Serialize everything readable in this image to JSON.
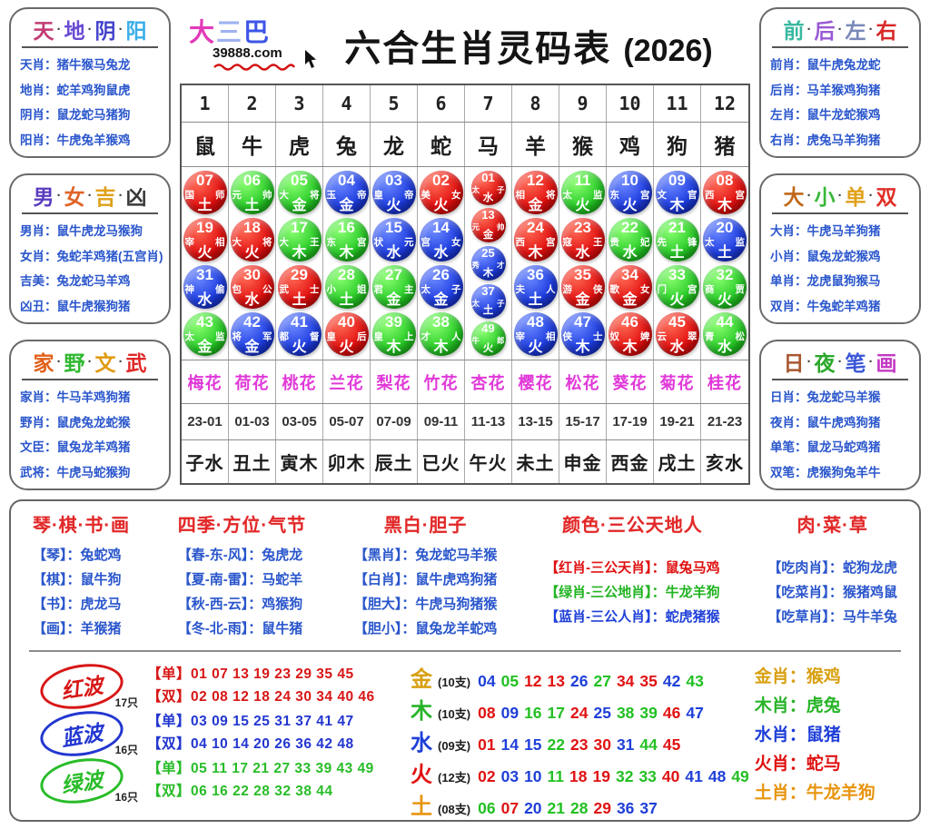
{
  "title": {
    "main": "六合生肖灵码表",
    "year": "(2026)"
  },
  "logo": {
    "chars": [
      {
        "t": "大",
        "c": "#e23ab8"
      },
      {
        "t": "三",
        "c": "#9fb2f2"
      },
      {
        "t": "巴",
        "c": "#3e55e6"
      }
    ],
    "site": "39888.com"
  },
  "side_boxes": [
    {
      "id": "tian-di-yin-yang",
      "title": [
        {
          "t": "天",
          "c": "#c23a72"
        },
        {
          "t": "地",
          "c": "#6a4ad2"
        },
        {
          "t": "阴",
          "c": "#4444cc"
        },
        {
          "t": "阳",
          "c": "#3aaee8"
        }
      ],
      "rows": [
        {
          "label": "天肖：",
          "value": "猪牛猴马兔龙"
        },
        {
          "label": "地肖：",
          "value": "蛇羊鸡狗鼠虎"
        },
        {
          "label": "阴肖：",
          "value": "鼠龙蛇马猪狗"
        },
        {
          "label": "阳肖：",
          "value": "牛虎兔羊猴鸡"
        }
      ]
    },
    {
      "id": "nan-nv-ji-xiong",
      "title": [
        {
          "t": "男",
          "c": "#5b3cc0"
        },
        {
          "t": "女",
          "c": "#e06428"
        },
        {
          "t": "吉",
          "c": "#e0a018"
        },
        {
          "t": "凶",
          "c": "#3a3a3a"
        }
      ],
      "rows": [
        {
          "label": "男肖：",
          "value": "鼠牛虎龙马猴狗"
        },
        {
          "label": "女肖：",
          "value": "兔蛇羊鸡猪(五宫肖)"
        },
        {
          "label": "吉美：",
          "value": "兔龙蛇马羊鸡"
        },
        {
          "label": "凶丑：",
          "value": "鼠牛虎猴狗猪"
        }
      ]
    },
    {
      "id": "jia-ye-wen-wu",
      "title": [
        {
          "t": "家",
          "c": "#e2601a"
        },
        {
          "t": "野",
          "c": "#30b830"
        },
        {
          "t": "文",
          "c": "#e09a10"
        },
        {
          "t": "武",
          "c": "#e02828"
        }
      ],
      "rows": [
        {
          "label": "家肖：",
          "value": "牛马羊鸡狗猪"
        },
        {
          "label": "野肖：",
          "value": "鼠虎兔龙蛇猴"
        },
        {
          "label": "文臣：",
          "value": "鼠兔龙羊鸡猪"
        },
        {
          "label": "武将：",
          "value": "牛虎马蛇猴狗"
        }
      ]
    },
    {
      "id": "qian-hou-zuo-you",
      "title": [
        {
          "t": "前",
          "c": "#38b8a0"
        },
        {
          "t": "后",
          "c": "#9a5ad4"
        },
        {
          "t": "左",
          "c": "#7888b8"
        },
        {
          "t": "右",
          "c": "#d82828"
        }
      ],
      "rows": [
        {
          "label": "前肖：",
          "value": "鼠牛虎兔龙蛇"
        },
        {
          "label": "后肖：",
          "value": "马羊猴鸡狗猪"
        },
        {
          "label": "左肖：",
          "value": "鼠牛龙蛇猴鸡"
        },
        {
          "label": "右肖：",
          "value": "虎兔马羊狗猪"
        }
      ]
    },
    {
      "id": "da-xiao-dan-shuang",
      "title": [
        {
          "t": "大",
          "c": "#c06818"
        },
        {
          "t": "小",
          "c": "#38b838"
        },
        {
          "t": "单",
          "c": "#e0a018"
        },
        {
          "t": "双",
          "c": "#e03028"
        }
      ],
      "rows": [
        {
          "label": "大肖：",
          "value": "牛虎马羊狗猪"
        },
        {
          "label": "小肖：",
          "value": "鼠兔龙蛇猴鸡"
        },
        {
          "label": "单肖：",
          "value": "龙虎鼠狗猴马"
        },
        {
          "label": "双肖：",
          "value": "牛兔蛇羊鸡猪"
        }
      ]
    },
    {
      "id": "ri-ye-bi-hua",
      "title": [
        {
          "t": "日",
          "c": "#a85830"
        },
        {
          "t": "夜",
          "c": "#2ba82b"
        },
        {
          "t": "笔",
          "c": "#3a56d8"
        },
        {
          "t": "画",
          "c": "#c438c4"
        }
      ],
      "rows": [
        {
          "label": "日肖：",
          "value": "兔龙蛇马羊猴"
        },
        {
          "label": "夜肖：",
          "value": "鼠牛虎鸡狗猪"
        },
        {
          "label": "单笔：",
          "value": "鼠龙马蛇鸡猪"
        },
        {
          "label": "双笔：",
          "value": "虎猴狗兔羊牛"
        }
      ]
    }
  ],
  "table": {
    "columns": [
      {
        "num": "1",
        "animal": "鼠",
        "flower": "梅花",
        "time": "23-01",
        "hour": "子水",
        "balls": [
          {
            "n": "07",
            "c": "r",
            "name": "国师",
            "elem": "土"
          },
          {
            "n": "19",
            "c": "r",
            "name": "宰相",
            "elem": "火"
          },
          {
            "n": "31",
            "c": "b",
            "name": "神偷",
            "elem": "水"
          },
          {
            "n": "43",
            "c": "g",
            "name": "太监",
            "elem": "金"
          }
        ]
      },
      {
        "num": "2",
        "animal": "牛",
        "flower": "荷花",
        "time": "01-03",
        "hour": "丑土",
        "balls": [
          {
            "n": "06",
            "c": "g",
            "name": "元帅",
            "elem": "土"
          },
          {
            "n": "18",
            "c": "r",
            "name": "大将",
            "elem": "火"
          },
          {
            "n": "30",
            "c": "r",
            "name": "包公",
            "elem": "水"
          },
          {
            "n": "42",
            "c": "b",
            "name": "将军",
            "elem": "金"
          }
        ]
      },
      {
        "num": "3",
        "animal": "虎",
        "flower": "桃花",
        "time": "03-05",
        "hour": "寅木",
        "balls": [
          {
            "n": "05",
            "c": "g",
            "name": "大将",
            "elem": "金"
          },
          {
            "n": "17",
            "c": "g",
            "name": "大王",
            "elem": "木"
          },
          {
            "n": "29",
            "c": "r",
            "name": "武士",
            "elem": "土"
          },
          {
            "n": "41",
            "c": "b",
            "name": "都督",
            "elem": "火"
          }
        ]
      },
      {
        "num": "4",
        "animal": "兔",
        "flower": "兰花",
        "time": "05-07",
        "hour": "卯木",
        "balls": [
          {
            "n": "04",
            "c": "b",
            "name": "玉帝",
            "elem": "金"
          },
          {
            "n": "16",
            "c": "g",
            "name": "东宫",
            "elem": "木"
          },
          {
            "n": "28",
            "c": "g",
            "name": "小姐",
            "elem": "土"
          },
          {
            "n": "40",
            "c": "r",
            "name": "皇后",
            "elem": "火"
          }
        ]
      },
      {
        "num": "5",
        "animal": "龙",
        "flower": "梨花",
        "time": "07-09",
        "hour": "辰土",
        "balls": [
          {
            "n": "03",
            "c": "b",
            "name": "皇帝",
            "elem": "火"
          },
          {
            "n": "15",
            "c": "b",
            "name": "状元",
            "elem": "水"
          },
          {
            "n": "27",
            "c": "g",
            "name": "君主",
            "elem": "金"
          },
          {
            "n": "39",
            "c": "g",
            "name": "皇上",
            "elem": "木"
          }
        ]
      },
      {
        "num": "6",
        "animal": "蛇",
        "flower": "竹花",
        "time": "09-11",
        "hour": "已火",
        "balls": [
          {
            "n": "02",
            "c": "r",
            "name": "美女",
            "elem": "火"
          },
          {
            "n": "14",
            "c": "b",
            "name": "宫女",
            "elem": "水"
          },
          {
            "n": "26",
            "c": "b",
            "name": "太子",
            "elem": "金"
          },
          {
            "n": "38",
            "c": "g",
            "name": "才人",
            "elem": "木"
          }
        ]
      },
      {
        "num": "7",
        "animal": "马",
        "flower": "杏花",
        "time": "11-13",
        "hour": "午火",
        "small": true,
        "balls": [
          {
            "n": "01",
            "c": "r",
            "name": "太子",
            "elem": "水"
          },
          {
            "n": "13",
            "c": "r",
            "name": "元帅",
            "elem": "金"
          },
          {
            "n": "25",
            "c": "b",
            "name": "秀才",
            "elem": "木"
          },
          {
            "n": "37",
            "c": "b",
            "name": "太子",
            "elem": "土"
          },
          {
            "n": "49",
            "c": "g",
            "name": "牛郎",
            "elem": "火"
          }
        ]
      },
      {
        "num": "8",
        "animal": "羊",
        "flower": "樱花",
        "time": "13-15",
        "hour": "未土",
        "balls": [
          {
            "n": "12",
            "c": "r",
            "name": "相将",
            "elem": "金"
          },
          {
            "n": "24",
            "c": "r",
            "name": "西宫",
            "elem": "木"
          },
          {
            "n": "36",
            "c": "b",
            "name": "夫人",
            "elem": "土"
          },
          {
            "n": "48",
            "c": "b",
            "name": "宰相",
            "elem": "火"
          }
        ]
      },
      {
        "num": "9",
        "animal": "猴",
        "flower": "松花",
        "time": "15-17",
        "hour": "申金",
        "balls": [
          {
            "n": "11",
            "c": "g",
            "name": "太监",
            "elem": "火"
          },
          {
            "n": "23",
            "c": "r",
            "name": "寇王",
            "elem": "水"
          },
          {
            "n": "35",
            "c": "r",
            "name": "游侠",
            "elem": "金"
          },
          {
            "n": "47",
            "c": "b",
            "name": "侠士",
            "elem": "木"
          }
        ]
      },
      {
        "num": "10",
        "animal": "鸡",
        "flower": "葵花",
        "time": "17-19",
        "hour": "西金",
        "balls": [
          {
            "n": "10",
            "c": "b",
            "name": "东宫",
            "elem": "火"
          },
          {
            "n": "22",
            "c": "g",
            "name": "贵妃",
            "elem": "水"
          },
          {
            "n": "34",
            "c": "r",
            "name": "歌女",
            "elem": "金"
          },
          {
            "n": "46",
            "c": "r",
            "name": "奴婢",
            "elem": "木"
          }
        ]
      },
      {
        "num": "11",
        "animal": "狗",
        "flower": "菊花",
        "time": "19-21",
        "hour": "戌土",
        "balls": [
          {
            "n": "09",
            "c": "b",
            "name": "文官",
            "elem": "木"
          },
          {
            "n": "21",
            "c": "g",
            "name": "先锋",
            "elem": "土"
          },
          {
            "n": "33",
            "c": "g",
            "name": "门宫",
            "elem": "火"
          },
          {
            "n": "45",
            "c": "r",
            "name": "云翠",
            "elem": "水"
          }
        ]
      },
      {
        "num": "12",
        "animal": "猪",
        "flower": "桂花",
        "time": "21-23",
        "hour": "亥水",
        "balls": [
          {
            "n": "08",
            "c": "r",
            "name": "西宫",
            "elem": "木"
          },
          {
            "n": "20",
            "c": "b",
            "name": "太监",
            "elem": "土"
          },
          {
            "n": "32",
            "c": "g",
            "name": "商贾",
            "elem": "火"
          },
          {
            "n": "44",
            "c": "g",
            "name": "青松",
            "elem": "水"
          }
        ]
      }
    ]
  },
  "bottom": {
    "categories": [
      {
        "title": "琴·棋·书·画",
        "rows": [
          {
            "label": "【琴】：",
            "value": "兔蛇鸡"
          },
          {
            "label": "【棋】：",
            "value": "鼠牛狗"
          },
          {
            "label": "【书】：",
            "value": "虎龙马"
          },
          {
            "label": "【画】：",
            "value": "羊猴猪"
          }
        ]
      },
      {
        "title": "四季·方位·气节",
        "rows": [
          {
            "label": "【春-东-风】：",
            "value": "兔虎龙"
          },
          {
            "label": "【夏-南-雷】：",
            "value": "马蛇羊"
          },
          {
            "label": "【秋-西-云】：",
            "value": "鸡猴狗"
          },
          {
            "label": "【冬-北-雨】：",
            "value": "鼠牛猪"
          }
        ]
      },
      {
        "title": "黑白·胆子",
        "rows": [
          {
            "label": "【黑肖】：",
            "value": "兔龙蛇马羊猴"
          },
          {
            "label": "【白肖】：",
            "value": "鼠牛虎鸡狗猪"
          },
          {
            "label": "【胆大】：",
            "value": "牛虎马狗猪猴"
          },
          {
            "label": "【胆小】：",
            "value": "鼠兔龙羊蛇鸡"
          }
        ]
      },
      {
        "title": "颜色·三公天地人",
        "offset": true,
        "rows": [
          {
            "label": "【红肖-三公天肖】：",
            "value": "鼠兔马鸡",
            "color": "#e01212"
          },
          {
            "label": "【绿肖-三公地肖】：",
            "value": "牛龙羊狗",
            "color": "#22b422"
          },
          {
            "label": "【蓝肖-三公人肖】：",
            "value": "蛇虎猪猴",
            "color": "#1e3fd8"
          }
        ]
      },
      {
        "title": "肉·菜·草",
        "offset": true,
        "rows": [
          {
            "label": "【吃肉肖】：",
            "value": "蛇狗龙虎"
          },
          {
            "label": "【吃菜肖】：",
            "value": "猴猪鸡鼠"
          },
          {
            "label": "【吃草肖】：",
            "value": "马牛羊兔"
          }
        ]
      }
    ],
    "waves": [
      {
        "name": "红波",
        "count": "17只",
        "color": "#d81616",
        "odd_label": "【单】",
        "odd": "01 07 13 19 23 29 35 45",
        "even_label": "【双】",
        "even": "02 08 12 18 24 30 34 40 46"
      },
      {
        "name": "蓝波",
        "count": "16只",
        "color": "#2236d0",
        "odd_label": "【单】",
        "odd": "03 09 15 25 31 37 41 47",
        "even_label": "【双】",
        "even": "04 10 14 20 26 36 42 48"
      },
      {
        "name": "绿波",
        "count": "16只",
        "color": "#28bc28",
        "odd_label": "【单】",
        "odd": "05 11 17 21 27 33 39 43 49",
        "even_label": "【双】",
        "even": "06 16 22 28 32 38 44"
      }
    ],
    "elements": [
      {
        "name": "金",
        "color": "#d8a012",
        "count": "(10支)",
        "nums": [
          [
            "04",
            "b"
          ],
          [
            "05",
            "g"
          ],
          [
            "12",
            "r"
          ],
          [
            "13",
            "r"
          ],
          [
            "26",
            "b"
          ],
          [
            "27",
            "g"
          ],
          [
            "34",
            "r"
          ],
          [
            "35",
            "r"
          ],
          [
            "42",
            "b"
          ],
          [
            "43",
            "g"
          ]
        ]
      },
      {
        "name": "木",
        "color": "#28b428",
        "count": "(10支)",
        "nums": [
          [
            "08",
            "r"
          ],
          [
            "09",
            "b"
          ],
          [
            "16",
            "g"
          ],
          [
            "17",
            "g"
          ],
          [
            "24",
            "r"
          ],
          [
            "25",
            "b"
          ],
          [
            "38",
            "g"
          ],
          [
            "39",
            "g"
          ],
          [
            "46",
            "r"
          ],
          [
            "47",
            "b"
          ]
        ]
      },
      {
        "name": "水",
        "color": "#1e3fd8",
        "count": "(09支)",
        "nums": [
          [
            "01",
            "r"
          ],
          [
            "14",
            "b"
          ],
          [
            "15",
            "b"
          ],
          [
            "22",
            "g"
          ],
          [
            "23",
            "r"
          ],
          [
            "30",
            "r"
          ],
          [
            "31",
            "b"
          ],
          [
            "44",
            "g"
          ],
          [
            "45",
            "r"
          ]
        ]
      },
      {
        "name": "火",
        "color": "#e01212",
        "count": "(12支)",
        "nums": [
          [
            "02",
            "r"
          ],
          [
            "03",
            "b"
          ],
          [
            "10",
            "b"
          ],
          [
            "11",
            "g"
          ],
          [
            "18",
            "r"
          ],
          [
            "19",
            "r"
          ],
          [
            "32",
            "g"
          ],
          [
            "33",
            "g"
          ],
          [
            "40",
            "r"
          ],
          [
            "41",
            "b"
          ],
          [
            "48",
            "b"
          ],
          [
            "49",
            "g"
          ]
        ]
      },
      {
        "name": "土",
        "color": "#e8940e",
        "count": "(08支)",
        "nums": [
          [
            "06",
            "g"
          ],
          [
            "07",
            "r"
          ],
          [
            "20",
            "b"
          ],
          [
            "21",
            "g"
          ],
          [
            "28",
            "g"
          ],
          [
            "29",
            "r"
          ],
          [
            "36",
            "b"
          ],
          [
            "37",
            "b"
          ]
        ]
      }
    ],
    "element_zodiac": [
      {
        "label": "金肖：",
        "value": "猴鸡",
        "color": "#d8a012"
      },
      {
        "label": "木肖：",
        "value": "虎兔",
        "color": "#28b428"
      },
      {
        "label": "水肖：",
        "value": "鼠猪",
        "color": "#1e3fd8"
      },
      {
        "label": "火肖：",
        "value": "蛇马",
        "color": "#e01212"
      },
      {
        "label": "土肖：",
        "value": "牛龙羊狗",
        "color": "#e8940e"
      }
    ]
  },
  "colors": {
    "r": "#e01212",
    "b": "#1e3fd8",
    "g": "#22c022"
  }
}
